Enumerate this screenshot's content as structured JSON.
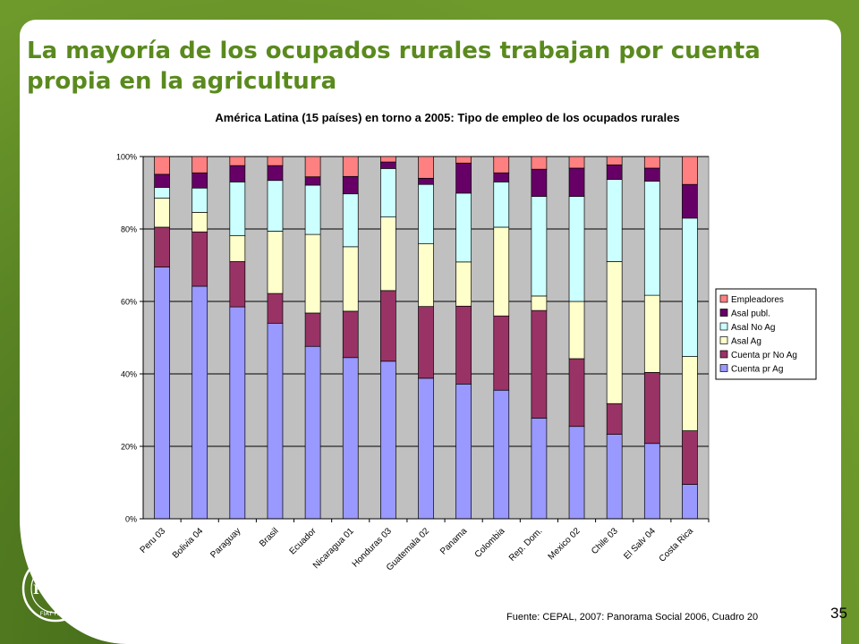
{
  "slide": {
    "title": "La mayoría de los ocupados rurales trabajan por cuenta propia en la agricultura",
    "source": "Fuente: CEPAL, 2007: Panorama Social 2006, Cuadro 20",
    "page_number": "35",
    "logo": {
      "icon": "fao-logo-icon",
      "letters": [
        "F",
        "A",
        "O"
      ],
      "motto": "FIAT PANIS"
    }
  },
  "colors": {
    "slide_green": "#6e9a2c",
    "title_green": "#5a8a1e",
    "plot_bg": "#c0c0c0"
  },
  "chart_data": {
    "type": "bar",
    "stacked": true,
    "title": "América Latina (15 países) en torno a 2005: Tipo de empleo de los ocupados rurales",
    "xlabel": "",
    "ylabel": "",
    "ylim": [
      0,
      100
    ],
    "yticks": [
      "0%",
      "20%",
      "40%",
      "60%",
      "80%",
      "100%"
    ],
    "grid": true,
    "legend_position": "right",
    "categories": [
      "Peru 03",
      "Bolivia 04",
      "Paraguay",
      "Brasil",
      "Ecuador",
      "Nicaragua 01",
      "Honduras 03",
      "Guatemala 02",
      "Panama",
      "Colombia",
      "Rep. Dom.",
      "Mexico 02",
      "Chile 03",
      "El Salv 04",
      "Costa Rica"
    ],
    "series": [
      {
        "name": "Cuenta pr Ag",
        "color": "#9999ff",
        "values": [
          69.5,
          64.2,
          58.5,
          54.0,
          47.6,
          44.5,
          43.5,
          38.8,
          37.2,
          35.5,
          27.8,
          25.5,
          23.3,
          20.8,
          9.5
        ]
      },
      {
        "name": "Cuenta pr No Ag",
        "color": "#993366",
        "values": [
          11.0,
          15.0,
          12.5,
          8.2,
          9.2,
          12.8,
          19.5,
          19.8,
          21.5,
          20.5,
          29.7,
          18.7,
          8.5,
          19.6,
          14.8
        ]
      },
      {
        "name": "Asal Ag",
        "color": "#ffffcc",
        "values": [
          8.0,
          5.4,
          7.2,
          17.2,
          21.7,
          17.8,
          20.3,
          17.3,
          12.2,
          24.5,
          4.0,
          15.8,
          39.2,
          21.3,
          20.5
        ]
      },
      {
        "name": "Asal No Ag",
        "color": "#ccffff",
        "values": [
          3.0,
          6.7,
          14.8,
          14.0,
          13.6,
          14.6,
          13.4,
          16.4,
          19.0,
          12.5,
          27.5,
          29.0,
          22.7,
          31.5,
          38.2
        ]
      },
      {
        "name": "Asal publ.",
        "color": "#660066",
        "values": [
          3.6,
          4.2,
          4.5,
          4.1,
          2.3,
          4.8,
          1.8,
          1.7,
          8.3,
          2.5,
          7.5,
          7.8,
          4.0,
          3.6,
          9.3
        ]
      },
      {
        "name": "Empleadores",
        "color": "#ff8080",
        "values": [
          4.9,
          4.5,
          2.5,
          2.5,
          5.6,
          5.5,
          1.5,
          6.0,
          1.8,
          4.5,
          3.5,
          3.2,
          2.3,
          3.2,
          7.7
        ]
      }
    ]
  }
}
